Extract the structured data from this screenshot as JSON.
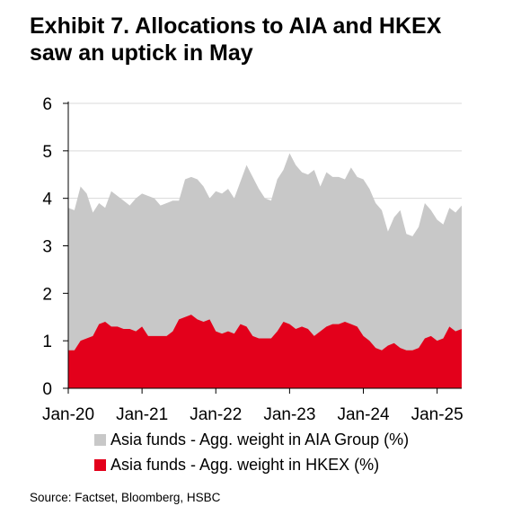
{
  "title_lines": [
    "Exhibit 7. Allocations to AIA and HKEX",
    "saw an uptick in May"
  ],
  "source": "Source: Factset, Bloomberg, HSBC",
  "colors": {
    "aia": "#c8c8c8",
    "hkex": "#e3001b",
    "axis": "#000000",
    "grid": "#d9d9d9"
  },
  "chart_data": {
    "type": "area",
    "title": "",
    "xlabel": "",
    "ylabel": "",
    "ylim": [
      0,
      6
    ],
    "yticks": [
      0,
      1,
      2,
      3,
      4,
      5,
      6
    ],
    "grid": true,
    "legend_placement": "bottom",
    "x_tick_labels": [
      "Jan-20",
      "Jan-21",
      "Jan-22",
      "Jan-23",
      "Jan-24",
      "Jan-25"
    ],
    "x_start": "2020-01",
    "x_end": "2025-05",
    "series": [
      {
        "name": "Asia funds - Agg. weight in AIA Group (%)",
        "values": [
          3.8,
          3.75,
          4.25,
          4.1,
          3.7,
          3.9,
          3.8,
          4.15,
          4.05,
          3.95,
          3.85,
          4.0,
          4.1,
          4.05,
          4.0,
          3.85,
          3.9,
          3.95,
          3.95,
          4.4,
          4.45,
          4.4,
          4.25,
          4.0,
          4.15,
          4.1,
          4.2,
          4.0,
          4.35,
          4.7,
          4.45,
          4.2,
          4.0,
          3.95,
          4.4,
          4.6,
          4.95,
          4.7,
          4.55,
          4.5,
          4.6,
          4.25,
          4.55,
          4.45,
          4.45,
          4.4,
          4.65,
          4.45,
          4.4,
          4.2,
          3.9,
          3.75,
          3.3,
          3.6,
          3.75,
          3.25,
          3.2,
          3.4,
          3.9,
          3.75,
          3.55,
          3.45,
          3.8,
          3.7,
          3.85
        ],
        "color": "#c8c8c8"
      },
      {
        "name": "Asia funds - Agg. weight in HKEX (%)",
        "values": [
          0.8,
          0.8,
          1.0,
          1.05,
          1.1,
          1.35,
          1.4,
          1.3,
          1.3,
          1.25,
          1.25,
          1.2,
          1.3,
          1.1,
          1.1,
          1.1,
          1.1,
          1.2,
          1.45,
          1.5,
          1.55,
          1.45,
          1.4,
          1.45,
          1.2,
          1.15,
          1.2,
          1.15,
          1.35,
          1.3,
          1.1,
          1.05,
          1.05,
          1.05,
          1.2,
          1.4,
          1.35,
          1.25,
          1.3,
          1.25,
          1.1,
          1.2,
          1.3,
          1.35,
          1.35,
          1.4,
          1.35,
          1.3,
          1.1,
          1.0,
          0.85,
          0.8,
          0.9,
          0.95,
          0.85,
          0.8,
          0.8,
          0.85,
          1.05,
          1.1,
          1.0,
          1.05,
          1.3,
          1.2,
          1.25
        ],
        "color": "#e3001b"
      }
    ]
  }
}
